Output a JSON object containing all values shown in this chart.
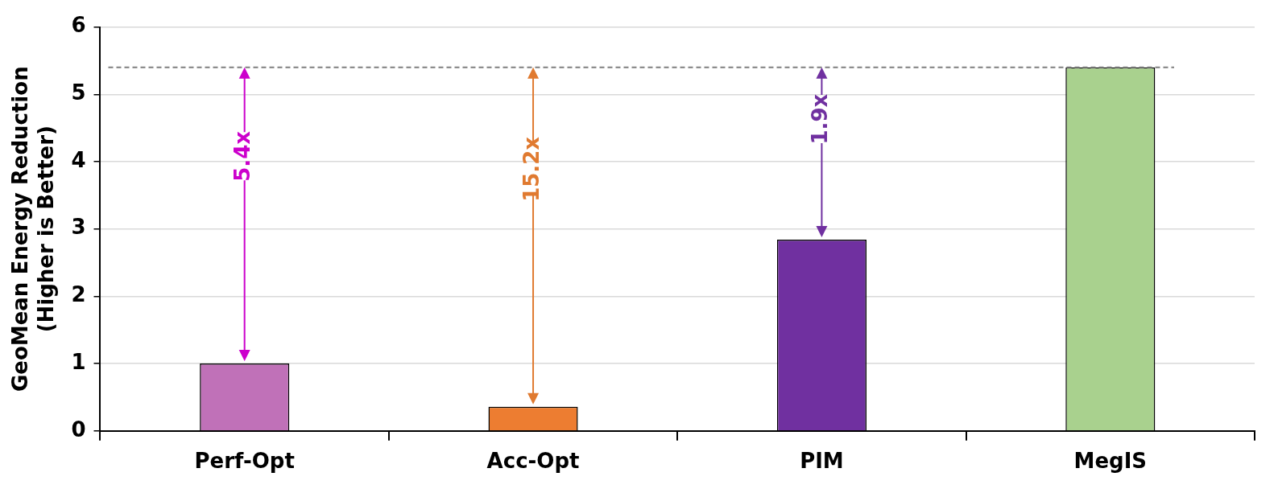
{
  "chart_data": {
    "type": "bar",
    "ylabel": "GeoMean Energy Reduction\n(Higher is Better)",
    "categories": [
      "Perf-Opt",
      "Acc-Opt",
      "PIM",
      "MegIS"
    ],
    "values": [
      1.0,
      0.36,
      2.84,
      5.4
    ],
    "colors": [
      "#c071b8",
      "#ed7d31",
      "#7030a0",
      "#a9d18e"
    ],
    "ylim": [
      0,
      6
    ],
    "yticks": [
      0,
      1,
      2,
      3,
      4,
      5,
      6
    ],
    "grid": "y",
    "legend": false,
    "ref_lines": [
      {
        "axis": "y",
        "value": 5.4,
        "color": "#7f7f7f",
        "line_style": "dashed"
      }
    ],
    "annotations": [
      "5.4x",
      "15.2x",
      "1.9x"
    ]
  }
}
